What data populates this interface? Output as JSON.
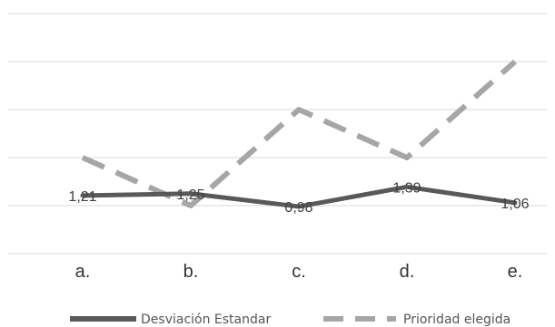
{
  "chart_data": {
    "type": "line",
    "title": "",
    "xlabel": "",
    "ylabel": "",
    "categories": [
      "a.",
      "b.",
      "c.",
      "d.",
      "e."
    ],
    "ylim": [
      0,
      5
    ],
    "grid": true,
    "legend_position": "bottom",
    "series": [
      {
        "name": "Desviación Estandar",
        "values": [
          1.21,
          1.25,
          0.98,
          1.39,
          1.06
        ],
        "data_labels": [
          "1,21",
          "1,25",
          "0,98",
          "1,39",
          "1,06"
        ],
        "color": "#595959",
        "style": "solid"
      },
      {
        "name": "Prioridad elegida",
        "values": [
          2,
          1,
          3,
          2,
          4
        ],
        "color": "#a6a6a6",
        "style": "dashed"
      }
    ]
  }
}
